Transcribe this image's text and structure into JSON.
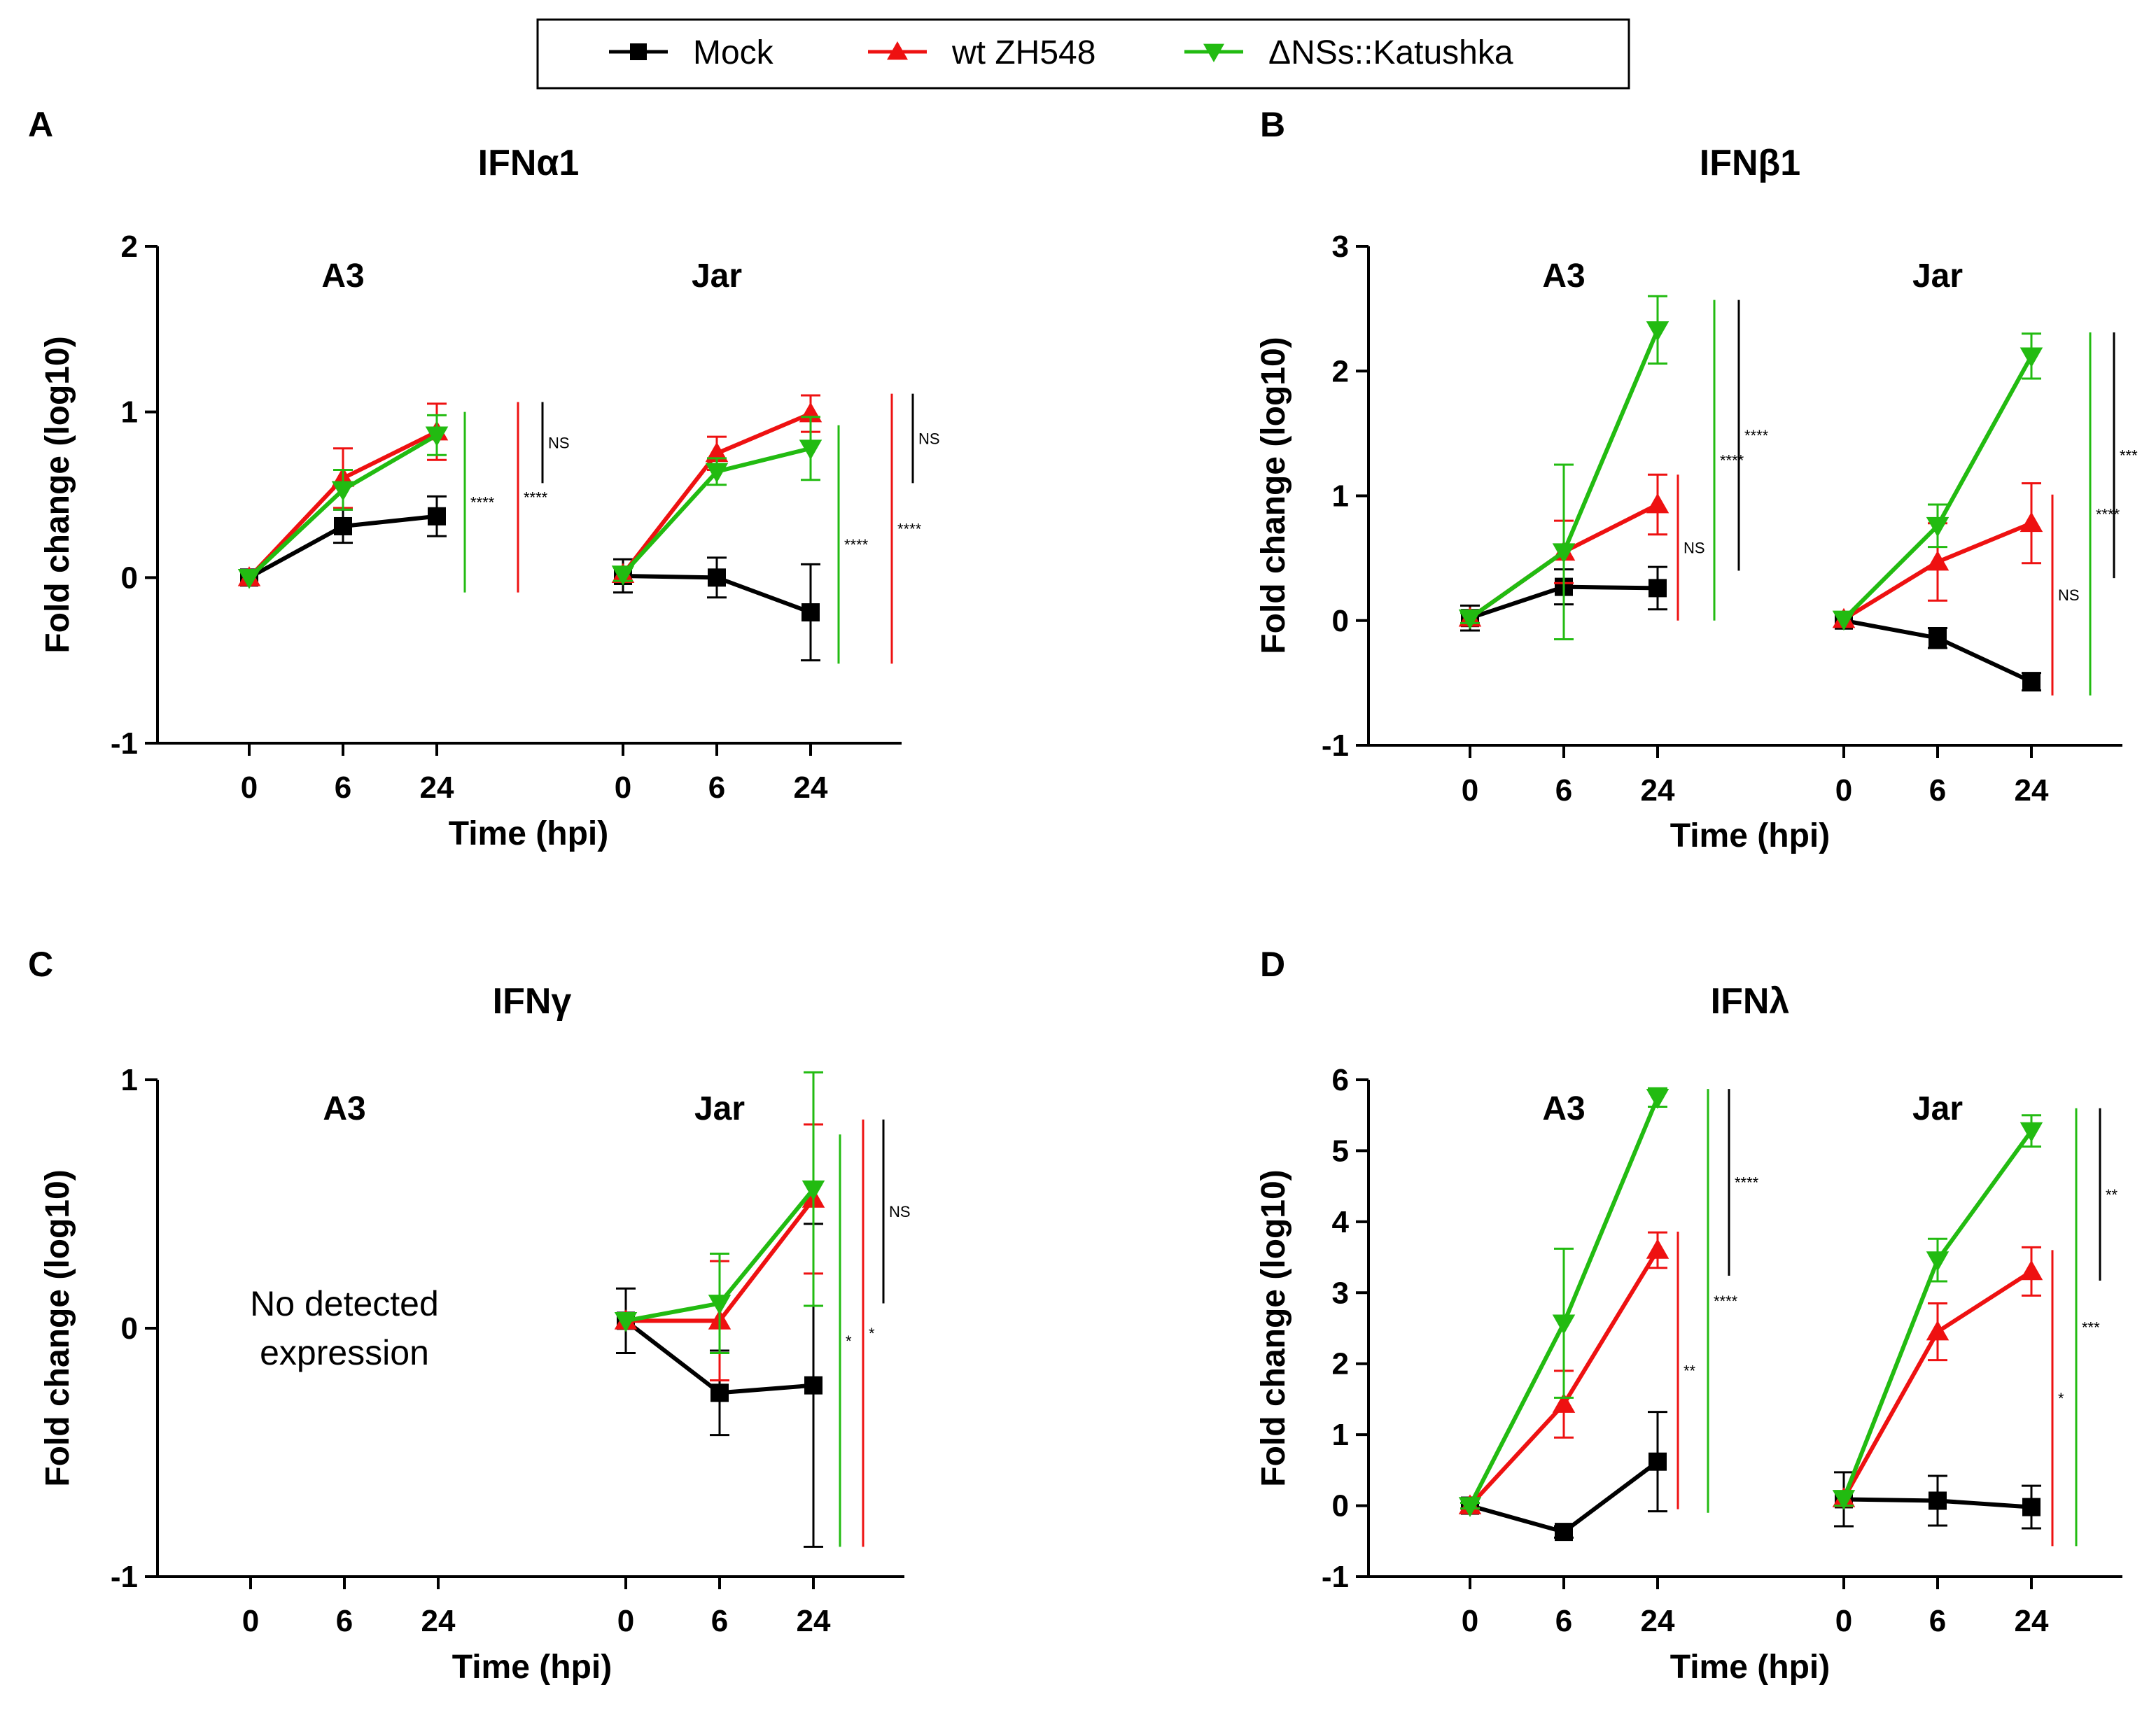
{
  "legend": {
    "entries": [
      {
        "key": "mock",
        "label": "Mock",
        "color": "#000000",
        "marker": "square"
      },
      {
        "key": "wt",
        "label": "wt ZH548",
        "color": "#ee1111",
        "marker": "triangle-up"
      },
      {
        "key": "dns",
        "label": "ΔNSs::Katushka",
        "color": "#22bb11",
        "marker": "triangle-down"
      }
    ]
  },
  "chart_data": [
    {
      "type": "line",
      "letter": "A",
      "title": "IFNα1",
      "ylabel": "Fold change (log10)",
      "xlabel": "Time (hpi)",
      "ylim": [
        -1,
        2
      ],
      "yticks": [
        "-1",
        "0",
        "1",
        "2"
      ],
      "groups": [
        {
          "label": "A3",
          "x": [
            "0",
            "6",
            "24"
          ],
          "series": [
            {
              "key": "mock",
              "values": [
                0,
                0.31,
                0.37
              ],
              "err": [
                0.02,
                0.1,
                0.12
              ]
            },
            {
              "key": "wt",
              "values": [
                0,
                0.6,
                0.88
              ],
              "err": [
                0.02,
                0.18,
                0.17
              ]
            },
            {
              "key": "dns",
              "values": [
                0,
                0.53,
                0.86
              ],
              "err": [
                0.02,
                0.12,
                0.12
              ]
            }
          ],
          "brackets": [
            {
              "color": "dns",
              "from": -0.09,
              "to": 1.0,
              "label": "****"
            },
            {
              "color": "wt",
              "from": -0.09,
              "to": 1.06,
              "label": "****"
            },
            {
              "color": "mock",
              "from": 0.57,
              "to": 1.06,
              "label": "NS"
            }
          ]
        },
        {
          "label": "Jar",
          "x": [
            "0",
            "6",
            "24"
          ],
          "series": [
            {
              "key": "mock",
              "values": [
                0.01,
                0,
                -0.21
              ],
              "err": [
                0.1,
                0.12,
                0.29
              ]
            },
            {
              "key": "wt",
              "values": [
                0.02,
                0.75,
                0.99
              ],
              "err": [
                0.04,
                0.1,
                0.11
              ]
            },
            {
              "key": "dns",
              "values": [
                0.02,
                0.64,
                0.78
              ],
              "err": [
                0.04,
                0.08,
                0.19
              ]
            }
          ],
          "brackets": [
            {
              "color": "dns",
              "from": -0.52,
              "to": 0.92,
              "label": "****"
            },
            {
              "color": "wt",
              "from": -0.52,
              "to": 1.11,
              "label": "****"
            },
            {
              "color": "mock",
              "from": 0.57,
              "to": 1.11,
              "label": "NS"
            }
          ]
        }
      ]
    },
    {
      "type": "line",
      "letter": "B",
      "title": "IFNβ1",
      "ylabel": "Fold change (log10)",
      "xlabel": "Time (hpi)",
      "ylim": [
        -1,
        3
      ],
      "yticks": [
        "-1",
        "0",
        "1",
        "2",
        "3"
      ],
      "groups": [
        {
          "label": "A3",
          "x": [
            "0",
            "6",
            "24"
          ],
          "series": [
            {
              "key": "mock",
              "values": [
                0.02,
                0.27,
                0.26
              ],
              "err": [
                0.1,
                0.14,
                0.17
              ]
            },
            {
              "key": "wt",
              "values": [
                0.02,
                0.55,
                0.93
              ],
              "err": [
                0.04,
                0.25,
                0.24
              ]
            },
            {
              "key": "dns",
              "values": [
                0.02,
                0.55,
                2.33
              ],
              "err": [
                0.04,
                0.7,
                0.27
              ]
            }
          ],
          "brackets": [
            {
              "color": "wt",
              "from": 0,
              "to": 1.17,
              "label": "NS"
            },
            {
              "color": "dns",
              "from": 0,
              "to": 2.57,
              "label": "****"
            },
            {
              "color": "mock",
              "from": 0.4,
              "to": 2.57,
              "label": "****"
            }
          ]
        },
        {
          "label": "Jar",
          "x": [
            "0",
            "6",
            "24"
          ],
          "series": [
            {
              "key": "mock",
              "values": [
                0,
                -0.14,
                -0.49
              ],
              "err": [
                0.03,
                0.08,
                0.07
              ]
            },
            {
              "key": "wt",
              "values": [
                0.01,
                0.47,
                0.78
              ],
              "err": [
                0.03,
                0.31,
                0.32
              ]
            },
            {
              "key": "dns",
              "values": [
                0.01,
                0.76,
                2.12
              ],
              "err": [
                0.03,
                0.17,
                0.18
              ]
            }
          ],
          "brackets": [
            {
              "color": "wt",
              "from": -0.6,
              "to": 1.01,
              "label": "NS"
            },
            {
              "color": "dns",
              "from": -0.6,
              "to": 2.31,
              "label": "****"
            },
            {
              "color": "mock",
              "from": 0.34,
              "to": 2.31,
              "label": "***"
            }
          ]
        }
      ]
    },
    {
      "type": "line",
      "letter": "C",
      "title": "IFNγ",
      "ylabel": "Fold change (log10)",
      "xlabel": "Time (hpi)",
      "ylim": [
        -1,
        1
      ],
      "yticks": [
        "-1",
        "0",
        "1"
      ],
      "note": [
        "No detected",
        "expression"
      ],
      "groups": [
        {
          "label": "A3",
          "x": [
            "0",
            "6",
            "24"
          ],
          "series": [],
          "brackets": []
        },
        {
          "label": "Jar",
          "x": [
            "0",
            "6",
            "24"
          ],
          "series": [
            {
              "key": "mock",
              "values": [
                0.03,
                -0.26,
                -0.23
              ],
              "err": [
                0.13,
                0.17,
                0.65
              ]
            },
            {
              "key": "wt",
              "values": [
                0.03,
                0.03,
                0.52
              ],
              "err": [
                0.03,
                0.24,
                0.3
              ]
            },
            {
              "key": "dns",
              "values": [
                0.03,
                0.1,
                0.56
              ],
              "err": [
                0.03,
                0.2,
                0.47
              ]
            }
          ],
          "brackets": [
            {
              "color": "dns",
              "from": -0.88,
              "to": 0.78,
              "label": "*"
            },
            {
              "color": "wt",
              "from": -0.88,
              "to": 0.84,
              "label": "*"
            },
            {
              "color": "mock",
              "from": 0.1,
              "to": 0.84,
              "label": "NS"
            }
          ]
        }
      ]
    },
    {
      "type": "line",
      "letter": "D",
      "title": "IFNλ",
      "ylabel": "Fold change (log10)",
      "xlabel": "Time (hpi)",
      "ylim": [
        -1,
        6
      ],
      "yticks": [
        "-1",
        "0",
        "1",
        "2",
        "3",
        "4",
        "5",
        "6"
      ],
      "groups": [
        {
          "label": "A3",
          "x": [
            "0",
            "6",
            "24"
          ],
          "series": [
            {
              "key": "mock",
              "values": [
                0,
                -0.37,
                0.62
              ],
              "err": [
                0.04,
                0.08,
                0.7
              ]
            },
            {
              "key": "wt",
              "values": [
                0,
                1.43,
                3.6
              ],
              "err": [
                0.04,
                0.47,
                0.25
              ]
            },
            {
              "key": "dns",
              "values": [
                0,
                2.57,
                5.75
              ],
              "err": [
                0.04,
                1.05,
                0.13
              ]
            }
          ],
          "brackets": [
            {
              "color": "wt",
              "from": -0.05,
              "to": 3.86,
              "label": "**"
            },
            {
              "color": "dns",
              "from": -0.1,
              "to": 5.87,
              "label": "****"
            },
            {
              "color": "mock",
              "from": 3.24,
              "to": 5.87,
              "label": "****"
            }
          ]
        },
        {
          "label": "Jar",
          "x": [
            "0",
            "6",
            "24"
          ],
          "series": [
            {
              "key": "mock",
              "values": [
                0.09,
                0.07,
                -0.02
              ],
              "err": [
                0.38,
                0.35,
                0.3
              ]
            },
            {
              "key": "wt",
              "values": [
                0.1,
                2.45,
                3.3
              ],
              "err": [
                0.1,
                0.4,
                0.34
              ]
            },
            {
              "key": "dns",
              "values": [
                0.1,
                3.46,
                5.28
              ],
              "err": [
                0.1,
                0.3,
                0.22
              ]
            }
          ],
          "brackets": [
            {
              "color": "wt",
              "from": -0.57,
              "to": 3.6,
              "label": "*"
            },
            {
              "color": "dns",
              "from": -0.57,
              "to": 5.6,
              "label": "***"
            },
            {
              "color": "mock",
              "from": 3.17,
              "to": 5.6,
              "label": "**"
            }
          ]
        }
      ]
    }
  ]
}
